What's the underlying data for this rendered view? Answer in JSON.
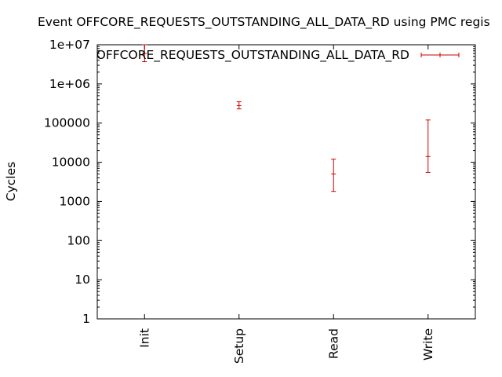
{
  "chart_data": {
    "type": "scatter",
    "title": "Event OFFCORE_REQUESTS_OUTSTANDING_ALL_DATA_RD using PMC regis",
    "xlabel": "",
    "ylabel": "Cycles",
    "y_scale": "log",
    "ylim": [
      1,
      10000000
    ],
    "y_ticks": [
      1,
      10,
      100,
      1000,
      10000,
      100000,
      1000000,
      10000000
    ],
    "y_tick_labels": [
      "1",
      "10",
      "100",
      "1000",
      "10000",
      "100000",
      "1e+06",
      "1e+07"
    ],
    "categories": [
      "Init",
      "Setup",
      "Read",
      "Write"
    ],
    "grid": false,
    "legend_position": "top-right",
    "colors": {
      "series": "#cc0000",
      "axis": "#000000"
    },
    "series": [
      {
        "name": "OFFCORE_REQUESTS_OUTSTANDING_ALL_DATA_RD",
        "style": "errorbars",
        "values": [
          6000000,
          280000,
          5000,
          14000
        ],
        "low": [
          3700000,
          230000,
          1800,
          5500
        ],
        "high": [
          10000000,
          350000,
          12000,
          120000
        ]
      }
    ]
  }
}
